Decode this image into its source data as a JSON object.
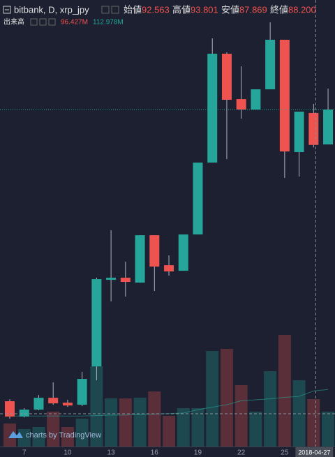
{
  "chart_data": {
    "type": "candlestick",
    "title": "bitbank, D, xrp_jpy",
    "legend_labels": {
      "open": "始値",
      "high": "高値",
      "low": "安値",
      "close": "終値"
    },
    "crosshair_values": {
      "open": "92.563",
      "high": "93.801",
      "low": "87.869",
      "close": "88.200"
    },
    "volume_title": "出来高",
    "volume_label": "96.427M",
    "volume_ma_label": "112.978M",
    "watermark": "charts by TradingView",
    "categories": [
      null,
      "7",
      null,
      null,
      "10",
      null,
      null,
      "13",
      null,
      null,
      "16",
      null,
      null,
      "19",
      null,
      null,
      "22",
      null,
      null,
      "25",
      null,
      "2018-04-27",
      null
    ],
    "open": [
      53.19,
      51.09,
      52.04,
      53.66,
      52.99,
      52.71,
      57.95,
      69.77,
      70.06,
      69.39,
      75.87,
      71.77,
      71.01,
      75.97,
      85.79,
      100.66,
      94.46,
      93.03,
      95.8,
      102.57,
      87.22,
      92.563,
      88.27
    ],
    "high": [
      53.47,
      52.23,
      54.04,
      55.76,
      53.38,
      57.19,
      70.06,
      76.54,
      72.25,
      75.87,
      75.87,
      73.11,
      75.97,
      85.79,
      102.76,
      100.85,
      98.94,
      95.8,
      104.95,
      102.57,
      92.75,
      93.801,
      95.89
    ],
    "low": [
      50.8,
      50.99,
      51.95,
      52.71,
      52.42,
      52.52,
      56.05,
      66.82,
      67.48,
      69.39,
      68.25,
      70.34,
      71.01,
      75.97,
      85.79,
      86.26,
      91.79,
      93.03,
      95.8,
      83.69,
      83.88,
      87.869,
      88.27
    ],
    "close": [
      51.09,
      52.04,
      53.66,
      52.9,
      52.61,
      56.24,
      69.87,
      70.06,
      69.49,
      75.87,
      71.58,
      70.92,
      75.97,
      85.79,
      100.66,
      94.37,
      93.03,
      95.8,
      102.57,
      87.31,
      92.75,
      88.2,
      93.03
    ],
    "volume": [
      46.8,
      35.5,
      39.7,
      70.9,
      39.7,
      56.7,
      163.1,
      97.8,
      97.8,
      99.3,
      112.0,
      62.4,
      78.0,
      78.0,
      194.3,
      198.5,
      124.8,
      70.9,
      153.1,
      226.9,
      134.7,
      96.427,
      70.9
    ],
    "volume_ma": [
      62,
      62,
      62,
      62,
      62,
      62,
      63,
      64,
      64,
      65,
      66,
      67,
      68,
      75,
      80,
      85,
      93,
      95,
      97,
      100,
      102,
      112.978,
      116
    ],
    "ylim": [
      47,
      108
    ],
    "volume_ylim": [
      0,
      283.6
    ],
    "up_color": "#26a69a",
    "down_color": "#ef5350",
    "crosshair_index": 21
  }
}
